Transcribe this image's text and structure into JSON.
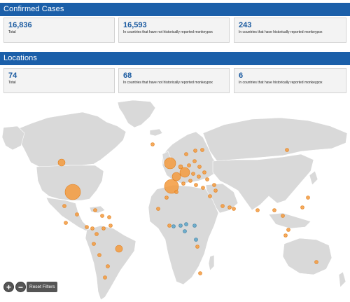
{
  "confirmed": {
    "title": "Confirmed Cases",
    "cards": [
      {
        "value": "16,836",
        "label": "Total"
      },
      {
        "value": "16,593",
        "label": "In countries that have not historically reported monkeypox"
      },
      {
        "value": "243",
        "label": "In countries that have historically reported monkeypox"
      }
    ]
  },
  "locations": {
    "title": "Locations",
    "cards": [
      {
        "value": "74",
        "label": "Total"
      },
      {
        "value": "68",
        "label": "In countries that have not historically reported monkeypox"
      },
      {
        "value": "6",
        "label": "In countries that have historically reported monkeypox"
      }
    ]
  },
  "controls": {
    "zoom_in": "+",
    "zoom_out": "−",
    "reset": "Reset Filters"
  },
  "map": {
    "land_color": "#d9d9d9",
    "border_color": "#ffffff",
    "ocean_color": "#ffffff",
    "orange_color": "#f39a3d",
    "blue_color": "#5aa5c9"
  }
}
